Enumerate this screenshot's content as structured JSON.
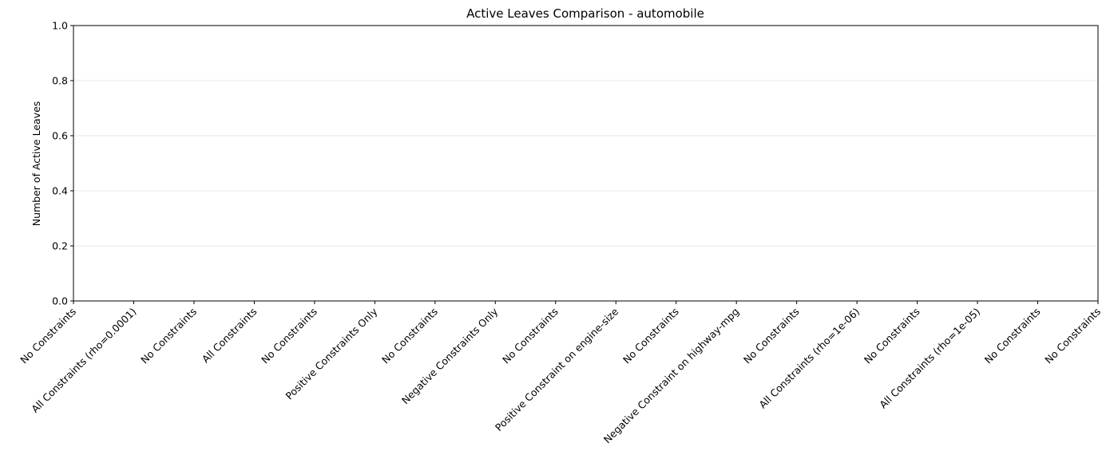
{
  "chart_data": {
    "type": "bar",
    "title": "Active Leaves Comparison - automobile",
    "ylabel": "Number of Active Leaves",
    "categories": [
      "No Constraints",
      "All Constraints (rho=0.0001)",
      "No Constraints",
      "All Constraints",
      "No Constraints",
      "Positive Constraints Only",
      "No Constraints",
      "Negative Constraints Only",
      "No Constraints",
      "Positive Constraint on engine-size",
      "No Constraints",
      "Negative Constraint on highway-mpg",
      "No Constraints",
      "All Constraints (rho=1e-06)",
      "No Constraints",
      "All Constraints (rho=1e-05)",
      "No Constraints",
      "No Constraints"
    ],
    "ylim": [
      0,
      1
    ],
    "yticks": [
      {
        "value": 0,
        "label": "0.0"
      },
      0.2,
      0.4,
      0.6,
      0.8,
      {
        "value": 1,
        "label": "1.0"
      }
    ],
    "grid": true
  }
}
